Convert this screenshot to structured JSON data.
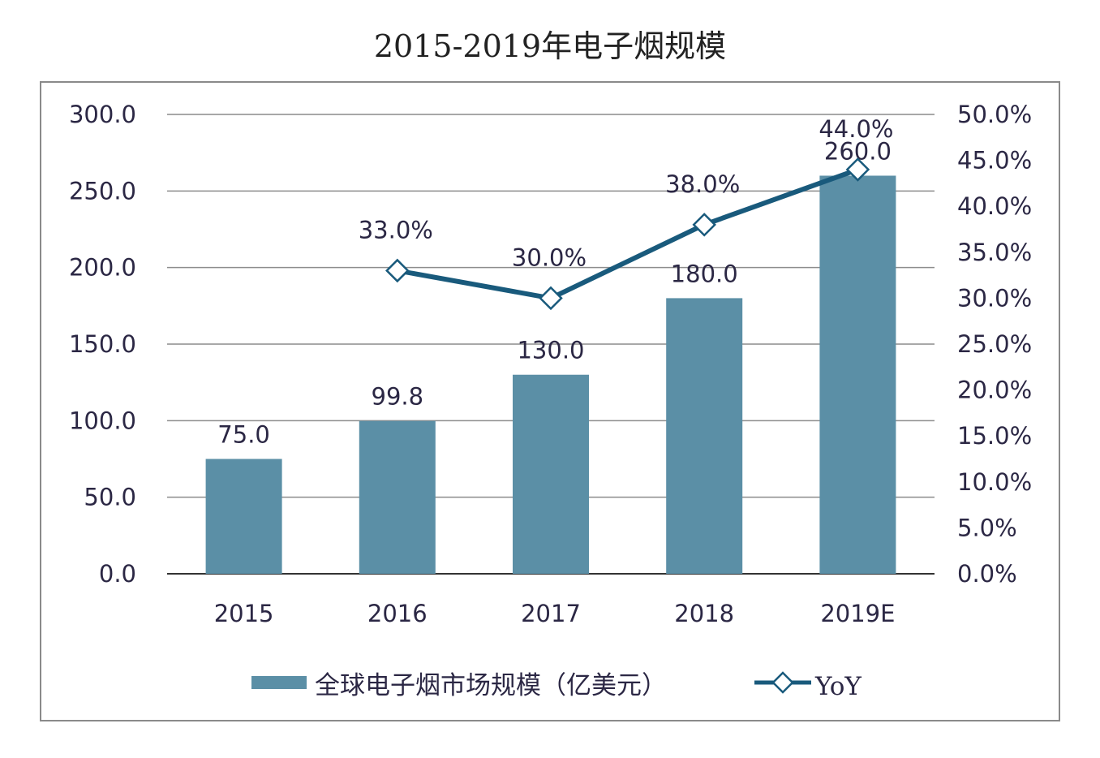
{
  "chart_data": {
    "type": "bar",
    "title": "2015-2019年电子烟规模",
    "categories": [
      "2015",
      "2016",
      "2017",
      "2018",
      "2019E"
    ],
    "series": [
      {
        "name": "全球电子烟市场规模（亿美元）",
        "type": "bar",
        "axis": "left",
        "values": [
          75.0,
          99.8,
          130.0,
          180.0,
          260.0
        ],
        "labels": [
          "75.0",
          "99.8",
          "130.0",
          "180.0",
          "260.0"
        ],
        "color": "#5b8fa6"
      },
      {
        "name": "YoY",
        "type": "line",
        "axis": "right",
        "values": [
          null,
          33.0,
          30.0,
          38.0,
          44.0
        ],
        "labels": [
          null,
          "33.0%",
          "30.0%",
          "38.0%",
          "44.0%"
        ],
        "color": "#195a7c",
        "marker": "diamond"
      }
    ],
    "left_axis": {
      "ylim": [
        0,
        300
      ],
      "ticks": [
        "0.0",
        "50.0",
        "100.0",
        "150.0",
        "200.0",
        "250.0",
        "300.0"
      ]
    },
    "right_axis": {
      "ylim": [
        0,
        50
      ],
      "ticks": [
        "0.0%",
        "5.0%",
        "10.0%",
        "15.0%",
        "20.0%",
        "25.0%",
        "30.0%",
        "35.0%",
        "40.0%",
        "45.0%",
        "50.0%"
      ]
    },
    "grid": true,
    "legend": "bottom"
  }
}
